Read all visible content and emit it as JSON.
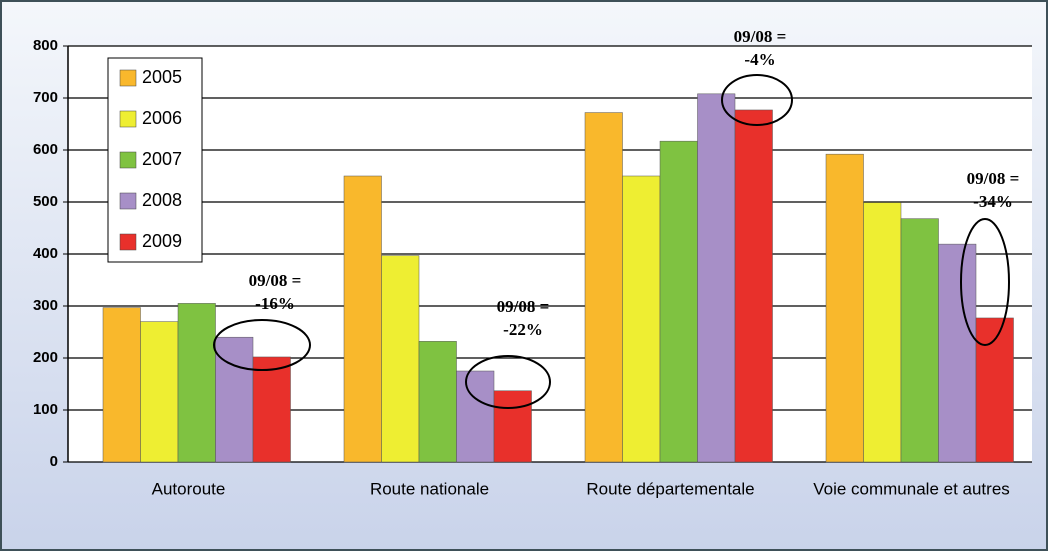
{
  "chart_data": {
    "type": "bar",
    "categories": [
      "Autoroute",
      "Route nationale",
      "Route départementale",
      "Voie communale et autres"
    ],
    "series": [
      {
        "name": "2005",
        "color": "#f9b82c",
        "values": [
          297,
          550,
          672,
          592
        ]
      },
      {
        "name": "2006",
        "color": "#eeee32",
        "values": [
          270,
          397,
          550,
          499
        ]
      },
      {
        "name": "2007",
        "color": "#7fc241",
        "values": [
          305,
          232,
          617,
          468
        ]
      },
      {
        "name": "2008",
        "color": "#a78fc7",
        "values": [
          240,
          175,
          708,
          419
        ]
      },
      {
        "name": "2009",
        "color": "#e8302b",
        "values": [
          202,
          137,
          677,
          277
        ]
      }
    ],
    "ylim": [
      0,
      800
    ],
    "yticks": [
      0,
      100,
      200,
      300,
      400,
      500,
      600,
      700,
      800
    ],
    "grid": true,
    "legend": "top-left",
    "annotations": [
      {
        "lines": [
          "09/08 =",
          "-16%"
        ]
      },
      {
        "lines": [
          "09/08 =",
          "-22%"
        ]
      },
      {
        "lines": [
          "09/08 =",
          "-4%"
        ]
      },
      {
        "lines": [
          "09/08 =",
          "-34%"
        ]
      }
    ]
  }
}
